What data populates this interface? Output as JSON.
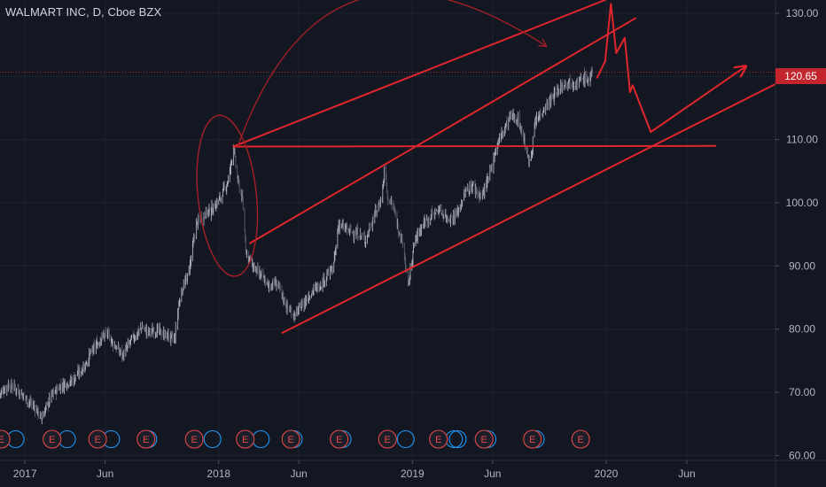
{
  "header": {
    "symbol": "WALMART INC, D, Cboe BZX"
  },
  "colors": {
    "background": "#131722",
    "candle_up": "#aeb1ba",
    "candle_down": "#5d6070",
    "drawing": "#e0262c",
    "drawing_dark": "#a51f25",
    "last_price_bg": "#c2262c",
    "earnings": "#e04848",
    "dividend": "#2196f3",
    "grid": "#1e222d",
    "axis_text": "#b2b5be"
  },
  "chart_data": {
    "type": "candlestick",
    "title": "WALMART INC, D, Cboe BZX",
    "x_axis": {
      "type": "date",
      "range": [
        "2016-11-15",
        "2020-11-15"
      ],
      "tick_labels": [
        "2017",
        "Jun",
        "2018",
        "Jun",
        "2019",
        "Jun",
        "2020",
        "Jun"
      ],
      "tick_dates": [
        "2017-01-01",
        "2017-06-01",
        "2018-01-01",
        "2018-06-01",
        "2019-01-01",
        "2019-06-01",
        "2020-01-01",
        "2020-06-01"
      ]
    },
    "y_axis": {
      "ylim": [
        59.2,
        132.1
      ],
      "ticks": [
        "60.00",
        "70.00",
        "80.00",
        "90.00",
        "100.00",
        "110.00",
        "120.00",
        "130.00"
      ],
      "position": "right"
    },
    "last_price": {
      "value": 120.65,
      "label": "120.65"
    },
    "price_path": [
      [
        "2016-11-15",
        69.8
      ],
      [
        "2016-12-01",
        71.2
      ],
      [
        "2016-12-15",
        70.6
      ],
      [
        "2017-01-01",
        69.2
      ],
      [
        "2017-01-20",
        67.6
      ],
      [
        "2017-02-01",
        65.9
      ],
      [
        "2017-02-20",
        69.4
      ],
      [
        "2017-03-10",
        71.1
      ],
      [
        "2017-04-01",
        72.0
      ],
      [
        "2017-04-20",
        73.8
      ],
      [
        "2017-05-10",
        76.8
      ],
      [
        "2017-05-25",
        78.6
      ],
      [
        "2017-06-05",
        79.4
      ],
      [
        "2017-06-20",
        77.2
      ],
      [
        "2017-07-05",
        75.8
      ],
      [
        "2017-07-20",
        78.2
      ],
      [
        "2017-08-10",
        80.3
      ],
      [
        "2017-08-20",
        79.5
      ],
      [
        "2017-09-05",
        79.8
      ],
      [
        "2017-09-25",
        78.9
      ],
      [
        "2017-10-10",
        78.4
      ],
      [
        "2017-10-20",
        85.2
      ],
      [
        "2017-11-05",
        88.7
      ],
      [
        "2017-11-20",
        96.6
      ],
      [
        "2017-12-05",
        98.2
      ],
      [
        "2017-12-20",
        99.0
      ],
      [
        "2018-01-05",
        100.9
      ],
      [
        "2018-01-20",
        103.8
      ],
      [
        "2018-01-29",
        108.9
      ],
      [
        "2018-02-05",
        103.9
      ],
      [
        "2018-02-15",
        100.2
      ],
      [
        "2018-02-22",
        92.2
      ],
      [
        "2018-03-05",
        90.1
      ],
      [
        "2018-03-20",
        88.6
      ],
      [
        "2018-04-05",
        86.8
      ],
      [
        "2018-04-20",
        87.4
      ],
      [
        "2018-05-10",
        83.4
      ],
      [
        "2018-05-25",
        82.1
      ],
      [
        "2018-06-10",
        84.2
      ],
      [
        "2018-06-25",
        85.9
      ],
      [
        "2018-07-10",
        86.9
      ],
      [
        "2018-07-25",
        88.7
      ],
      [
        "2018-08-05",
        89.6
      ],
      [
        "2018-08-15",
        96.6
      ],
      [
        "2018-09-01",
        95.6
      ],
      [
        "2018-09-20",
        95.1
      ],
      [
        "2018-10-05",
        94.2
      ],
      [
        "2018-10-20",
        97.8
      ],
      [
        "2018-11-05",
        101.0
      ],
      [
        "2018-11-10",
        106.1
      ],
      [
        "2018-11-15",
        100.8
      ],
      [
        "2018-11-25",
        99.5
      ],
      [
        "2018-12-05",
        96.2
      ],
      [
        "2018-12-15",
        92.9
      ],
      [
        "2018-12-24",
        86.6
      ],
      [
        "2019-01-05",
        93.9
      ],
      [
        "2019-01-20",
        96.6
      ],
      [
        "2019-02-05",
        97.9
      ],
      [
        "2019-02-20",
        98.9
      ],
      [
        "2019-03-10",
        97.5
      ],
      [
        "2019-03-25",
        98.0
      ],
      [
        "2019-04-10",
        101.6
      ],
      [
        "2019-04-25",
        102.8
      ],
      [
        "2019-05-10",
        100.8
      ],
      [
        "2019-05-25",
        103.9
      ],
      [
        "2019-06-10",
        109.4
      ],
      [
        "2019-06-25",
        112.0
      ],
      [
        "2019-07-05",
        113.8
      ],
      [
        "2019-07-20",
        113.1
      ],
      [
        "2019-08-01",
        109.4
      ],
      [
        "2019-08-10",
        105.7
      ],
      [
        "2019-08-20",
        112.4
      ],
      [
        "2019-09-05",
        114.9
      ],
      [
        "2019-09-20",
        116.4
      ],
      [
        "2019-10-05",
        118.2
      ],
      [
        "2019-10-20",
        119.4
      ],
      [
        "2019-11-05",
        118.9
      ],
      [
        "2019-11-20",
        119.7
      ],
      [
        "2019-12-01",
        119.5
      ],
      [
        "2019-12-06",
        120.65
      ]
    ],
    "annotations": {
      "lines": [
        [
          [
            "2018-01-29",
            108.9
          ],
          [
            "2019-12-30",
            132.1
          ]
        ],
        [
          [
            "2018-03-01",
            93.6
          ],
          [
            "2020-02-25",
            129.2
          ]
        ],
        [
          [
            "2018-01-29",
            108.9
          ],
          [
            "2020-07-25",
            109.0
          ]
        ],
        [
          [
            "2018-05-01",
            79.4
          ],
          [
            "2020-11-15",
            118.8
          ]
        ]
      ],
      "projection": [
        [
          "2019-12-15",
          119.8
        ],
        [
          "2019-12-30",
          122.4
        ],
        [
          "2020-01-10",
          131.5
        ],
        [
          "2020-01-20",
          123.7
        ],
        [
          "2020-02-05",
          126.1
        ],
        [
          "2020-02-15",
          117.5
        ],
        [
          "2020-02-20",
          118.6
        ],
        [
          "2020-03-25",
          111.2
        ],
        [
          "2020-09-20",
          121.6
        ]
      ],
      "projection_arrow_tip": [
        "2020-09-20",
        121.6
      ],
      "circle": {
        "center": [
          "2018-01-17",
          101.1
        ],
        "rx_days": 55,
        "ry_value": 12.8
      },
      "curved_arrow": {
        "start": [
          "2018-02-05",
          108.7
        ],
        "control": [
          "2018-07-20",
          147.5
        ],
        "end": [
          "2019-09-10",
          124.8
        ]
      }
    },
    "event_markers": {
      "earnings": {
        "label": "E",
        "dates": [
          "2016-11-17",
          "2017-02-21",
          "2017-05-18",
          "2017-08-17",
          "2017-11-16",
          "2018-02-20",
          "2018-05-17",
          "2018-08-16",
          "2018-11-15",
          "2019-02-19",
          "2019-05-16",
          "2019-08-15",
          "2019-11-14"
        ]
      },
      "dividends": {
        "dates": [
          "2016-12-01",
          "2017-03-08",
          "2017-05-30",
          "2017-08-08",
          "2017-12-07",
          "2018-03-08",
          "2018-05-09",
          "2018-08-09",
          "2018-12-06",
          "2019-03-07",
          "2019-03-14",
          "2019-05-09",
          "2019-08-08"
        ]
      }
    }
  }
}
